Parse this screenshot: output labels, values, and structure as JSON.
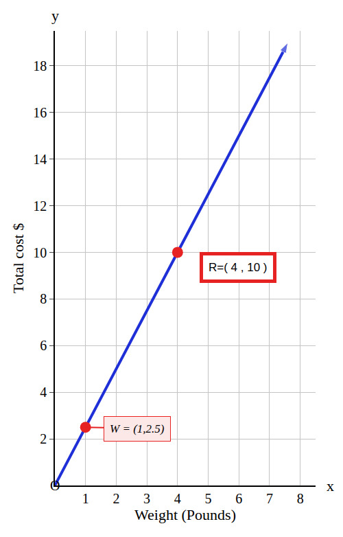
{
  "chart_data": {
    "type": "line",
    "x_label": "Weight (Pounds)",
    "y_label": "Total cost $",
    "axis_names": {
      "x": "x",
      "y": "y"
    },
    "origin_label": "O",
    "xlim": [
      0,
      8.5
    ],
    "ylim": [
      0,
      19.5
    ],
    "xticks": [
      1,
      2,
      3,
      4,
      5,
      6,
      7,
      8
    ],
    "yticks": [
      2,
      4,
      6,
      8,
      10,
      12,
      14,
      16,
      18
    ],
    "grid": true,
    "series": [
      {
        "type": "line",
        "color": "#1f2fd8",
        "marker": "arrow",
        "x": [
          0,
          1,
          4,
          7.6
        ],
        "values": [
          0,
          2.5,
          10,
          19
        ]
      },
      {
        "type": "scatter",
        "color": "#e62222",
        "marker": "circle",
        "x": [
          1,
          4
        ],
        "values": [
          2.5,
          10
        ]
      }
    ],
    "annotations": [
      {
        "text": "W = (1,2.5)",
        "x": 1,
        "y": 2.5
      },
      {
        "text": "R=( 4 , 10 )",
        "x": 4,
        "y": 10
      }
    ]
  }
}
